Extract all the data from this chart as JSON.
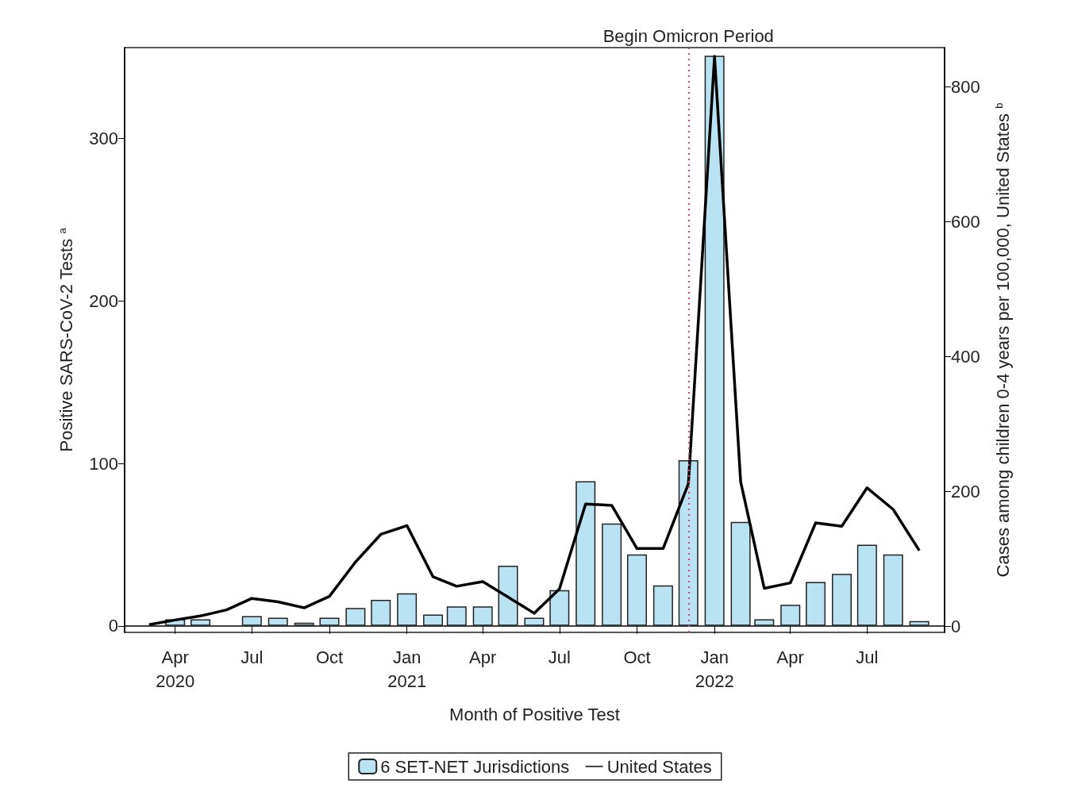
{
  "chart_data": {
    "type": "bar",
    "xlabel": "Month of Positive Test",
    "ylabel": "Positive SARS-CoV-2 Tests $^{a}$",
    "y2label": "Cases among children 0-4 years per 100,000, United States $^{b}$",
    "x": [
      "2020-03",
      "2020-04",
      "2020-05",
      "2020-06",
      "2020-07",
      "2020-08",
      "2020-09",
      "2020-10",
      "2020-11",
      "2020-12",
      "2021-01",
      "2021-02",
      "2021-03",
      "2021-04",
      "2021-05",
      "2021-06",
      "2021-07",
      "2021-08",
      "2021-09",
      "2021-10",
      "2021-11",
      "2021-12",
      "2022-01",
      "2022-02",
      "2022-03",
      "2022-04",
      "2022-05",
      "2022-06",
      "2022-07",
      "2022-08",
      "2022-09"
    ],
    "series": [
      {
        "name": "6 SET-NET Jurisdictions",
        "color": "#b9e3f3",
        "values": [
          null,
          4,
          4,
          null,
          6,
          5,
          2,
          5,
          11,
          16,
          20,
          7,
          12,
          12,
          37,
          5,
          22,
          89,
          63,
          44,
          25,
          102,
          351,
          64,
          4,
          13,
          27,
          32,
          50,
          44,
          3
        ]
      },
      {
        "name": "United States",
        "type": "line",
        "axis": "y2",
        "color": "#000000",
        "values": [
          2,
          9,
          15,
          24,
          41,
          36,
          27,
          44,
          95,
          136,
          149,
          73,
          59,
          66,
          43,
          19,
          55,
          181,
          179,
          115,
          115,
          211,
          845,
          214,
          56,
          64,
          153,
          148,
          205,
          173,
          112
        ]
      }
    ],
    "xlim": [
      "2020-02",
      "2022-10"
    ],
    "xticks": [
      {
        "value": "2020-04",
        "label": "Apr\n2020"
      },
      {
        "value": "2020-07",
        "label": "Jul"
      },
      {
        "value": "2020-10",
        "label": "Oct"
      },
      {
        "value": "2021-01",
        "label": "Jan\n2021"
      },
      {
        "value": "2021-04",
        "label": "Apr"
      },
      {
        "value": "2021-07",
        "label": "Jul"
      },
      {
        "value": "2021-10",
        "label": "Oct"
      },
      {
        "value": "2022-01",
        "label": "Jan\n2022"
      },
      {
        "value": "2022-04",
        "label": "Apr"
      },
      {
        "value": "2022-07",
        "label": "Jul"
      }
    ],
    "ylim": [
      -4,
      356
    ],
    "yticks": [
      0,
      100,
      200,
      300
    ],
    "y2lim": [
      -9.4,
      858
    ],
    "y2ticks": [
      0,
      200,
      400,
      600,
      800
    ],
    "ref_lines": [
      {
        "axis": "x",
        "value": "2021-12",
        "label": "Begin Omicron Period",
        "color": "#e0407a",
        "line_style": "dotted"
      }
    ],
    "marker": "none",
    "legend": "bottom"
  }
}
